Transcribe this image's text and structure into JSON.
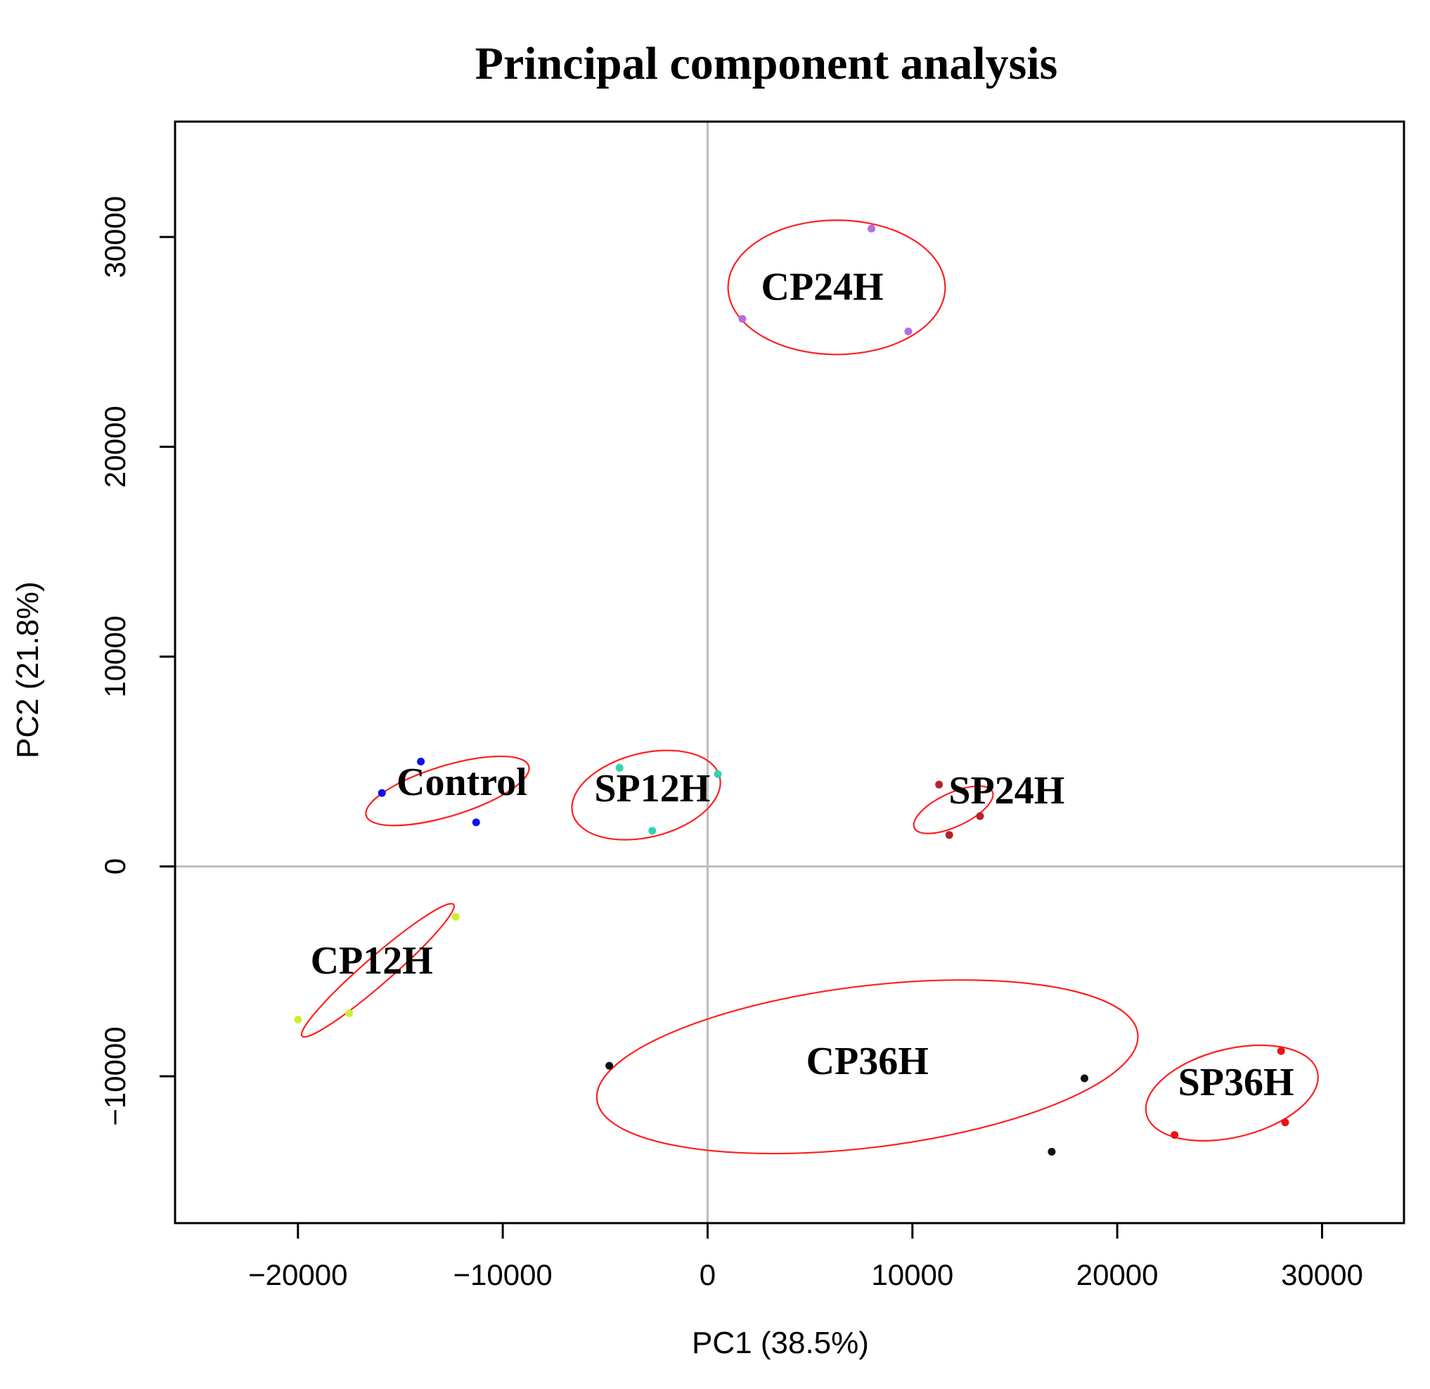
{
  "chart_data": {
    "type": "scatter",
    "title": "Principal component analysis",
    "xlabel": "PC1  (38.5%)",
    "ylabel": "PC2 (21.8%)",
    "xlim": [
      -26000,
      34000
    ],
    "ylim": [
      -17000,
      35500
    ],
    "xticks": [
      -20000,
      -10000,
      0,
      10000,
      20000,
      30000
    ],
    "yticks": [
      -10000,
      0,
      10000,
      20000,
      30000
    ],
    "xtick_labels": [
      "−20000",
      "−10000",
      "0",
      "10000",
      "20000",
      "30000"
    ],
    "ytick_labels": [
      "−10000",
      "0",
      "10000",
      "20000",
      "30000"
    ],
    "zero_lines": true,
    "groups": [
      {
        "label": "CP24H",
        "color": "#b36ee0",
        "points": [
          [
            8000,
            30400
          ],
          [
            1700,
            26100
          ],
          [
            9800,
            25500
          ]
        ],
        "label_pos": [
          5600,
          27000
        ],
        "ellipse": {
          "cx": 6300,
          "cy": 27600,
          "rx": 5300,
          "ry": 3200,
          "angle": 0
        }
      },
      {
        "label": "Control",
        "color": "#1010ee",
        "points": [
          [
            -14000,
            5000
          ],
          [
            -15900,
            3500
          ],
          [
            -11300,
            2100
          ]
        ],
        "label_pos": [
          -12000,
          3400
        ],
        "ellipse": {
          "cx": -12700,
          "cy": 3600,
          "rx": 4150,
          "ry": 1200,
          "angle": -17
        }
      },
      {
        "label": "SP12H",
        "color": "#33d2b0",
        "points": [
          [
            -4300,
            4700
          ],
          [
            500,
            4400
          ],
          [
            -2700,
            1700
          ]
        ],
        "label_pos": [
          -2700,
          3100
        ],
        "ellipse": {
          "cx": -3000,
          "cy": 3400,
          "rx": 3700,
          "ry": 2000,
          "angle": -14
        }
      },
      {
        "label": "SP24H",
        "color": "#b5222c",
        "points": [
          [
            11300,
            3900
          ],
          [
            13300,
            2400
          ],
          [
            11800,
            1500
          ]
        ],
        "label_pos": [
          14600,
          3000
        ],
        "ellipse": {
          "cx": 12000,
          "cy": 2700,
          "rx": 2100,
          "ry": 800,
          "angle": -25
        }
      },
      {
        "label": "CP12H",
        "color": "#ccee33",
        "points": [
          [
            -12300,
            -2400
          ],
          [
            -20000,
            -7300
          ],
          [
            -17500,
            -7000
          ]
        ],
        "label_pos": [
          -16400,
          -5100
        ],
        "ellipse": {
          "cx": -16100,
          "cy": -4950,
          "rx": 4900,
          "ry": 650,
          "angle": -41
        }
      },
      {
        "label": "CP36H",
        "color": "#111111",
        "points": [
          [
            -4800,
            -9500
          ],
          [
            18400,
            -10100
          ],
          [
            16800,
            -13600
          ]
        ],
        "label_pos": [
          7800,
          -9900
        ],
        "ellipse": {
          "cx": 7800,
          "cy": -9550,
          "rx": 13300,
          "ry": 3850,
          "angle": -7
        }
      },
      {
        "label": "SP36H",
        "color": "#ee1111",
        "points": [
          [
            28000,
            -8800
          ],
          [
            22800,
            -12800
          ],
          [
            28200,
            -12200
          ]
        ],
        "label_pos": [
          25800,
          -10900
        ],
        "ellipse": {
          "cx": 25600,
          "cy": -10800,
          "rx": 4300,
          "ry": 2100,
          "angle": -14
        }
      }
    ]
  }
}
